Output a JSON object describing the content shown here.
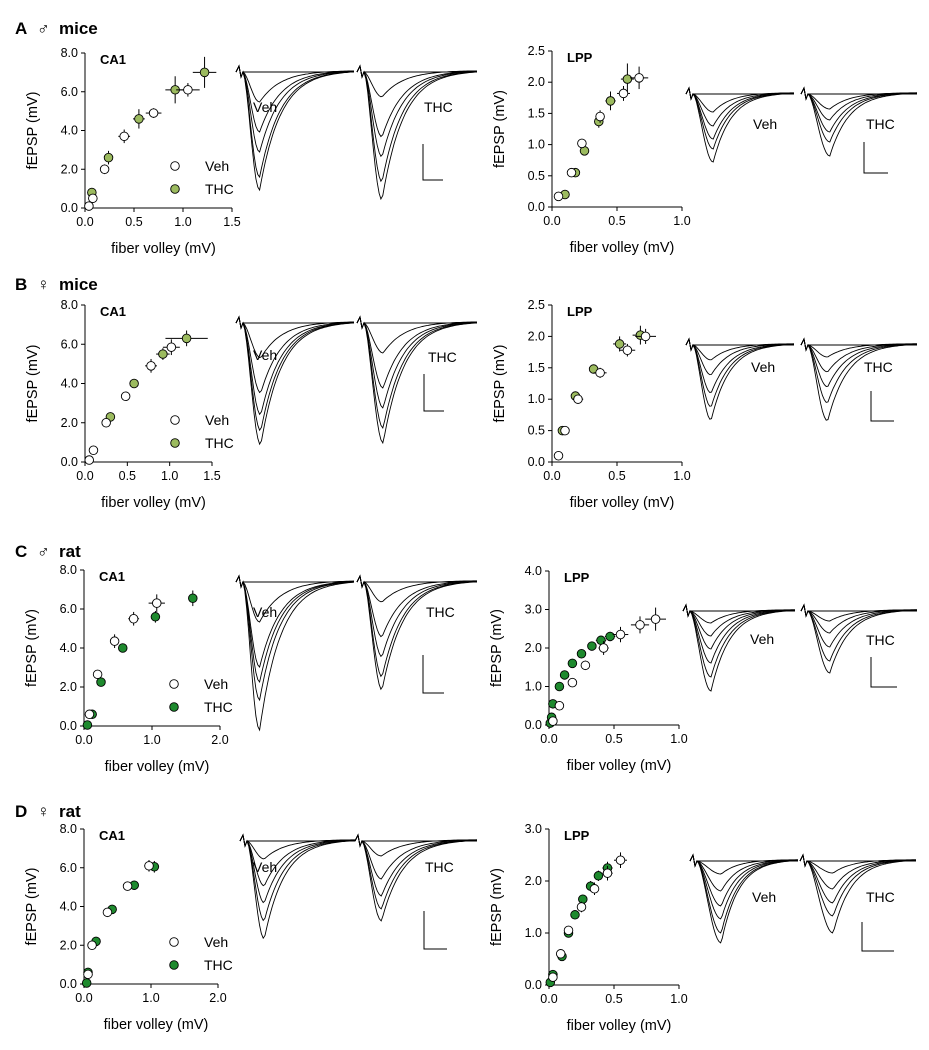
{
  "figure": {
    "colors": {
      "veh": "#ffffff",
      "thc_mice": "#9cbb5f",
      "thc_rat": "#1e8a2e",
      "ink": "#000000"
    },
    "sex_symbols": {
      "male": "♂",
      "female": "♀"
    },
    "legend": {
      "veh": "Veh",
      "thc": "THC"
    },
    "trace_labels": {
      "veh": "Veh",
      "thc": "THC"
    }
  },
  "chart_data": [
    {
      "id": "A-CA1",
      "panel": "A",
      "title": "mice",
      "sex": "male",
      "type": "scatter",
      "region": "CA1",
      "xlabel": "fiber volley (mV)",
      "ylabel": "fEPSP (mV)",
      "xlim": [
        0,
        1.5
      ],
      "ylim": [
        0,
        8
      ],
      "xticks": [
        "0.0",
        "0.5",
        "1.0",
        "1.5"
      ],
      "yticks": [
        "0.0",
        "2.0",
        "4.0",
        "6.0",
        "8.0"
      ],
      "thc_color": "mice",
      "series": [
        {
          "name": "Veh",
          "points": [
            [
              0.04,
              0.1,
              0.03,
              0.05
            ],
            [
              0.08,
              0.5,
              0.03,
              0.1
            ],
            [
              0.2,
              2.0,
              0.04,
              0.25
            ],
            [
              0.4,
              3.7,
              0.06,
              0.35
            ],
            [
              0.7,
              4.9,
              0.08,
              0.25
            ],
            [
              1.05,
              6.1,
              0.12,
              0.35
            ]
          ]
        },
        {
          "name": "THC",
          "points": [
            [
              0.07,
              0.8,
              0.03,
              0.15
            ],
            [
              0.24,
              2.6,
              0.04,
              0.35
            ],
            [
              0.55,
              4.6,
              0.06,
              0.5
            ],
            [
              0.92,
              6.1,
              0.1,
              0.7
            ],
            [
              1.22,
              7.0,
              0.12,
              0.8
            ]
          ]
        }
      ]
    },
    {
      "id": "A-LPP",
      "panel": "A",
      "type": "scatter",
      "region": "LPP",
      "xlabel": "fiber volley (mV)",
      "ylabel": "fEPSP (mV)",
      "xlim": [
        0,
        1.0
      ],
      "ylim": [
        0,
        2.5
      ],
      "xticks": [
        "0.0",
        "0.5",
        "1.0"
      ],
      "yticks": [
        "0.0",
        "0.5",
        "1.0",
        "1.5",
        "2.0",
        "2.5"
      ],
      "thc_color": "mice",
      "series": [
        {
          "name": "Veh",
          "points": [
            [
              0.05,
              0.17,
              0.02,
              0.03
            ],
            [
              0.15,
              0.55,
              0.02,
              0.05
            ],
            [
              0.23,
              1.02,
              0.02,
              0.05
            ],
            [
              0.37,
              1.45,
              0.03,
              0.1
            ],
            [
              0.55,
              1.82,
              0.05,
              0.12
            ],
            [
              0.67,
              2.07,
              0.07,
              0.18
            ]
          ]
        },
        {
          "name": "THC",
          "points": [
            [
              0.1,
              0.2,
              0.02,
              0.04
            ],
            [
              0.18,
              0.55,
              0.02,
              0.06
            ],
            [
              0.25,
              0.9,
              0.02,
              0.06
            ],
            [
              0.36,
              1.37,
              0.03,
              0.1
            ],
            [
              0.45,
              1.7,
              0.04,
              0.15
            ],
            [
              0.58,
              2.05,
              0.05,
              0.25
            ]
          ]
        }
      ]
    },
    {
      "id": "B-CA1",
      "panel": "B",
      "title": "mice",
      "sex": "female",
      "type": "scatter",
      "region": "CA1",
      "xlabel": "fiber volley (mV)",
      "ylabel": "fEPSP (mV)",
      "xlim": [
        0,
        1.5
      ],
      "ylim": [
        0,
        8
      ],
      "xticks": [
        "0.0",
        "0.5",
        "1.0",
        "1.5"
      ],
      "yticks": [
        "0.0",
        "2.0",
        "4.0",
        "6.0",
        "8.0"
      ],
      "thc_color": "mice",
      "series": [
        {
          "name": "Veh",
          "points": [
            [
              0.05,
              0.1,
              0.03,
              0.05
            ],
            [
              0.1,
              0.6,
              0.03,
              0.1
            ],
            [
              0.25,
              2.0,
              0.04,
              0.15
            ],
            [
              0.48,
              3.35,
              0.05,
              0.2
            ],
            [
              0.78,
              4.9,
              0.07,
              0.35
            ],
            [
              1.02,
              5.85,
              0.1,
              0.4
            ]
          ]
        },
        {
          "name": "THC",
          "points": [
            [
              0.3,
              2.3,
              0.04,
              0.2
            ],
            [
              0.58,
              4.0,
              0.05,
              0.2
            ],
            [
              0.92,
              5.5,
              0.08,
              0.3
            ],
            [
              1.2,
              6.3,
              0.25,
              0.4
            ]
          ]
        }
      ]
    },
    {
      "id": "B-LPP",
      "panel": "B",
      "type": "scatter",
      "region": "LPP",
      "xlabel": "fiber volley (mV)",
      "ylabel": "fEPSP (mV)",
      "xlim": [
        0,
        1.0
      ],
      "ylim": [
        0,
        2.5
      ],
      "xticks": [
        "0.0",
        "0.5",
        "1.0"
      ],
      "yticks": [
        "0.0",
        "0.5",
        "1.0",
        "1.5",
        "2.0",
        "2.5"
      ],
      "thc_color": "mice",
      "series": [
        {
          "name": "Veh",
          "points": [
            [
              0.05,
              0.1,
              0.02,
              0.02
            ],
            [
              0.1,
              0.5,
              0.02,
              0.04
            ],
            [
              0.2,
              1.0,
              0.04,
              0.06
            ],
            [
              0.37,
              1.42,
              0.05,
              0.08
            ],
            [
              0.58,
              1.78,
              0.06,
              0.1
            ],
            [
              0.72,
              2.0,
              0.08,
              0.12
            ]
          ]
        },
        {
          "name": "THC",
          "points": [
            [
              0.08,
              0.5,
              0.02,
              0.04
            ],
            [
              0.18,
              1.05,
              0.02,
              0.06
            ],
            [
              0.32,
              1.48,
              0.03,
              0.07
            ],
            [
              0.52,
              1.88,
              0.05,
              0.12
            ],
            [
              0.68,
              2.02,
              0.06,
              0.15
            ]
          ]
        }
      ]
    },
    {
      "id": "C-CA1",
      "panel": "C",
      "title": "rat",
      "sex": "male",
      "type": "scatter",
      "region": "CA1",
      "xlabel": "fiber volley (mV)",
      "ylabel": "fEPSP (mV)",
      "xlim": [
        0,
        2.0
      ],
      "ylim": [
        0,
        8
      ],
      "xticks": [
        "0.0",
        "1.0",
        "2.0"
      ],
      "yticks": [
        "0.0",
        "2.0",
        "4.0",
        "6.0",
        "8.0"
      ],
      "thc_color": "rat",
      "series": [
        {
          "name": "Veh",
          "points": [
            [
              0.08,
              0.6,
              0.03,
              0.1
            ],
            [
              0.2,
              2.65,
              0.04,
              0.15
            ],
            [
              0.45,
              4.35,
              0.06,
              0.35
            ],
            [
              0.73,
              5.5,
              0.08,
              0.35
            ],
            [
              1.07,
              6.3,
              0.12,
              0.45
            ]
          ]
        },
        {
          "name": "THC",
          "points": [
            [
              0.05,
              0.05,
              0.02,
              0.05
            ],
            [
              0.12,
              0.6,
              0.03,
              0.1
            ],
            [
              0.25,
              2.25,
              0.04,
              0.15
            ],
            [
              0.57,
              4.0,
              0.05,
              0.2
            ],
            [
              1.05,
              5.6,
              0.06,
              0.3
            ],
            [
              1.6,
              6.55,
              0.06,
              0.4
            ]
          ]
        }
      ]
    },
    {
      "id": "C-LPP",
      "panel": "C",
      "type": "scatter",
      "region": "LPP",
      "xlabel": "fiber volley (mV)",
      "ylabel": "fEPSP (mV)",
      "xlim": [
        0,
        1.0
      ],
      "ylim": [
        0,
        4.0
      ],
      "xticks": [
        "0.0",
        "0.5",
        "1.0"
      ],
      "yticks": [
        "0.0",
        "1.0",
        "2.0",
        "3.0",
        "4.0"
      ],
      "thc_color": "rat",
      "series": [
        {
          "name": "Veh",
          "points": [
            [
              0.03,
              0.1,
              0.01,
              0.05
            ],
            [
              0.08,
              0.5,
              0.02,
              0.08
            ],
            [
              0.18,
              1.1,
              0.03,
              0.1
            ],
            [
              0.28,
              1.55,
              0.03,
              0.12
            ],
            [
              0.42,
              2.0,
              0.04,
              0.18
            ],
            [
              0.55,
              2.35,
              0.06,
              0.2
            ],
            [
              0.7,
              2.6,
              0.07,
              0.22
            ],
            [
              0.82,
              2.75,
              0.08,
              0.3
            ]
          ]
        },
        {
          "name": "THC",
          "points": [
            [
              0.01,
              0.05,
              0.01,
              0.03
            ],
            [
              0.02,
              0.2,
              0.01,
              0.04
            ],
            [
              0.03,
              0.55,
              0.01,
              0.05
            ],
            [
              0.08,
              1.0,
              0.02,
              0.06
            ],
            [
              0.12,
              1.3,
              0.02,
              0.06
            ],
            [
              0.18,
              1.6,
              0.02,
              0.07
            ],
            [
              0.25,
              1.85,
              0.03,
              0.08
            ],
            [
              0.33,
              2.05,
              0.03,
              0.1
            ],
            [
              0.4,
              2.2,
              0.04,
              0.1
            ],
            [
              0.47,
              2.3,
              0.04,
              0.12
            ]
          ]
        }
      ]
    },
    {
      "id": "D-CA1",
      "panel": "D",
      "title": "rat",
      "sex": "female",
      "type": "scatter",
      "region": "CA1",
      "xlabel": "fiber volley (mV)",
      "ylabel": "fEPSP (mV)",
      "xlim": [
        0,
        2.0
      ],
      "ylim": [
        0,
        8
      ],
      "xticks": [
        "0.0",
        "1.0",
        "2.0"
      ],
      "yticks": [
        "0.0",
        "2.0",
        "4.0",
        "6.0",
        "8.0"
      ],
      "thc_color": "rat",
      "series": [
        {
          "name": "Veh",
          "points": [
            [
              0.06,
              0.5,
              0.02,
              0.08
            ],
            [
              0.12,
              2.0,
              0.03,
              0.12
            ],
            [
              0.35,
              3.7,
              0.04,
              0.2
            ],
            [
              0.65,
              5.05,
              0.05,
              0.2
            ],
            [
              0.97,
              6.1,
              0.07,
              0.3
            ]
          ]
        },
        {
          "name": "THC",
          "points": [
            [
              0.04,
              0.05,
              0.02,
              0.05
            ],
            [
              0.06,
              0.6,
              0.02,
              0.08
            ],
            [
              0.18,
              2.2,
              0.03,
              0.1
            ],
            [
              0.42,
              3.85,
              0.03,
              0.12
            ],
            [
              0.75,
              5.1,
              0.04,
              0.15
            ],
            [
              1.05,
              6.05,
              0.07,
              0.3
            ]
          ]
        }
      ]
    },
    {
      "id": "D-LPP",
      "panel": "D",
      "type": "scatter",
      "region": "LPP",
      "xlabel": "fiber volley (mV)",
      "ylabel": "fEPSP (mV)",
      "xlim": [
        0,
        1.0
      ],
      "ylim": [
        0,
        3.0
      ],
      "xticks": [
        "0.0",
        "0.5",
        "1.0"
      ],
      "yticks": [
        "0.0",
        "1.0",
        "2.0",
        "3.0"
      ],
      "thc_color": "rat",
      "series": [
        {
          "name": "Veh",
          "points": [
            [
              0.03,
              0.15,
              0.01,
              0.04
            ],
            [
              0.09,
              0.6,
              0.02,
              0.06
            ],
            [
              0.15,
              1.05,
              0.02,
              0.08
            ],
            [
              0.25,
              1.5,
              0.03,
              0.1
            ],
            [
              0.35,
              1.85,
              0.03,
              0.12
            ],
            [
              0.45,
              2.15,
              0.04,
              0.14
            ],
            [
              0.55,
              2.4,
              0.05,
              0.15
            ]
          ]
        },
        {
          "name": "THC",
          "points": [
            [
              0.01,
              0.05,
              0.01,
              0.03
            ],
            [
              0.03,
              0.2,
              0.01,
              0.04
            ],
            [
              0.1,
              0.55,
              0.02,
              0.05
            ],
            [
              0.15,
              1.0,
              0.02,
              0.06
            ],
            [
              0.2,
              1.35,
              0.02,
              0.06
            ],
            [
              0.26,
              1.65,
              0.03,
              0.08
            ],
            [
              0.32,
              1.9,
              0.03,
              0.1
            ],
            [
              0.38,
              2.1,
              0.03,
              0.1
            ],
            [
              0.45,
              2.25,
              0.04,
              0.12
            ]
          ]
        }
      ]
    }
  ]
}
